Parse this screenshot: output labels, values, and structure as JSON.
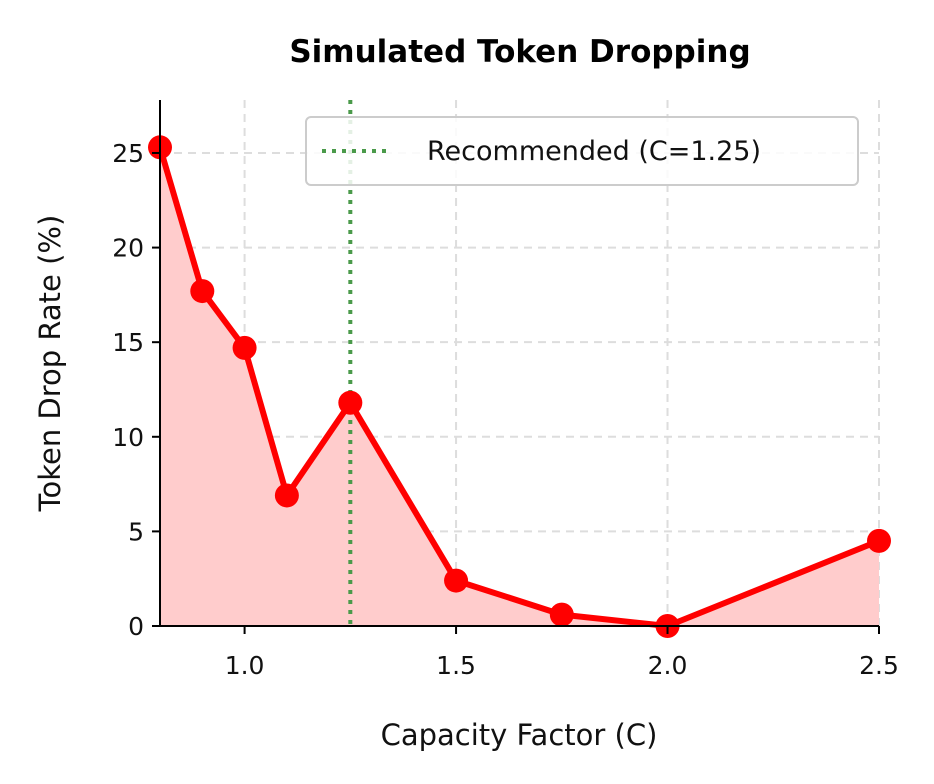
{
  "chart_data": {
    "type": "line",
    "title": "Simulated Token Dropping",
    "xlabel": "Capacity Factor (C)",
    "ylabel": "Token Drop Rate (%)",
    "xlim": [
      0.8,
      2.5
    ],
    "ylim": [
      0,
      27.8
    ],
    "xticks": [
      1.0,
      1.5,
      2.0,
      2.5
    ],
    "xtick_labels": [
      "1.0",
      "1.5",
      "2.0",
      "2.5"
    ],
    "yticks": [
      0,
      5,
      10,
      15,
      20,
      25
    ],
    "ytick_labels": [
      "0",
      "5",
      "10",
      "15",
      "20",
      "25"
    ],
    "grid": true,
    "legend_position": "top-right",
    "series": [
      {
        "x": [
          0.8,
          0.9,
          1.0,
          1.1,
          1.25,
          1.5,
          1.75,
          2.0,
          2.5
        ],
        "y": [
          25.3,
          17.7,
          14.7,
          6.9,
          11.8,
          2.4,
          0.6,
          0.0,
          4.5
        ],
        "color": "#ff0000",
        "fill": "#ffcccc",
        "markers": true
      }
    ],
    "reference_line": {
      "x": 1.25,
      "label": "Recommended (C=1.25)",
      "color": "#4a9a4a",
      "style": "dotted"
    }
  }
}
